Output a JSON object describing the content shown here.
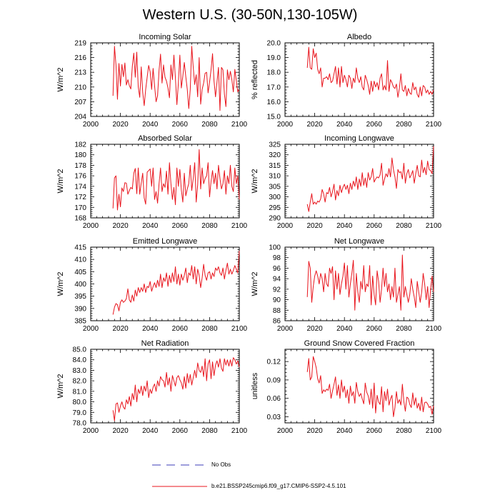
{
  "figure_title": "Western U.S. (30-50N,130-105W)",
  "legend": {
    "obs_label": "No Obs",
    "model_label": "b.e21.BSSP245cmip6.f09_g17.CMIP6-SSP2-4.5.101",
    "obs_color": "#3b3bb8",
    "model_color": "#e8141c"
  },
  "chart_data": [
    {
      "type": "line",
      "title": "Incoming Solar",
      "xlabel": "",
      "ylabel": "W/m^2",
      "xlim": [
        2000,
        2100
      ],
      "ylim": [
        204,
        219
      ],
      "xticks": [
        "2000",
        "2020",
        "2040",
        "2060",
        "2080",
        "2100"
      ],
      "yticks": [
        "204",
        "207",
        "210",
        "213",
        "216",
        "219"
      ],
      "x_start": 2015,
      "series": [
        {
          "name": "b.e21.BSSP245cmip6.f09_g17.CMIP6-SSP2-4.5.101",
          "values": [
            208.2,
            218.3,
            214.5,
            207.5,
            214.8,
            210.2,
            214.6,
            212.1,
            214.9,
            210.4,
            211.5,
            210.3,
            209.6,
            214.2,
            216.9,
            212.0,
            217.1,
            210.0,
            207.9,
            214.1,
            208.9,
            206.2,
            209.5,
            212.0,
            214.4,
            213.1,
            209.5,
            213.8,
            210.2,
            207.0,
            208.2,
            213.4,
            216.7,
            210.8,
            214.5,
            212.0,
            211.2,
            209.8,
            207.8,
            214.5,
            211.5,
            216.5,
            211.9,
            206.4,
            210.8,
            216.5,
            209.8,
            212.2,
            215.0,
            212.1,
            209.5,
            205.6,
            209.5,
            218.3,
            214.0,
            210.5,
            212.5,
            208.0,
            216.0,
            206.5,
            209.5,
            210.8,
            212.8,
            213.0,
            208.8,
            211.0,
            213.5,
            216.8,
            211.2,
            208.0,
            211.0,
            214.0,
            205.2,
            214.0,
            213.5,
            208.5,
            206.0,
            213.5,
            211.5,
            213.2,
            211.5,
            209.0,
            213.6,
            211.3,
            209.0,
            209.5
          ]
        }
      ]
    },
    {
      "type": "line",
      "title": "Albedo",
      "xlabel": "",
      "ylabel": "% reflected",
      "xlim": [
        2000,
        2100
      ],
      "ylim": [
        15.0,
        20.0
      ],
      "xticks": [
        "2000",
        "2020",
        "2040",
        "2060",
        "2080",
        "2100"
      ],
      "yticks": [
        "15.0",
        "16.0",
        "17.0",
        "18.0",
        "19.0",
        "20.0"
      ],
      "x_start": 2015,
      "series": [
        {
          "name": "b.e21.BSSP245cmip6.f09_g17.CMIP6-SSP2-4.5.101",
          "values": [
            18.3,
            19.7,
            18.3,
            18.2,
            19.6,
            19.0,
            19.3,
            18.2,
            17.9,
            18.3,
            17.0,
            17.6,
            17.6,
            17.7,
            17.5,
            17.9,
            17.3,
            17.4,
            17.9,
            18.4,
            17.2,
            18.3,
            17.0,
            18.4,
            17.3,
            17.8,
            17.5,
            17.0,
            17.8,
            17.6,
            16.9,
            17.6,
            17.3,
            18.3,
            17.6,
            17.3,
            17.7,
            17.0,
            16.8,
            17.8,
            17.5,
            17.1,
            16.5,
            17.4,
            16.7,
            17.4,
            17.0,
            17.3,
            16.8,
            17.6,
            17.9,
            16.8,
            17.1,
            16.8,
            18.8,
            16.7,
            17.5,
            17.3,
            17.0,
            16.9,
            17.2,
            16.3,
            16.9,
            17.9,
            16.8,
            16.7,
            17.1,
            16.4,
            16.9,
            16.6,
            16.5,
            17.3,
            16.8,
            17.0,
            16.5,
            16.3,
            17.0,
            16.4,
            17.1,
            17.0,
            16.6,
            16.8,
            16.5,
            16.7,
            16.5,
            16.8
          ]
        }
      ]
    },
    {
      "type": "line",
      "title": "Absorbed Solar",
      "xlabel": "",
      "ylabel": "W/m^2",
      "xlim": [
        2000,
        2100
      ],
      "ylim": [
        168,
        182
      ],
      "xticks": [
        "2000",
        "2020",
        "2040",
        "2060",
        "2080",
        "2100"
      ],
      "yticks": [
        "168",
        "170",
        "172",
        "174",
        "176",
        "178",
        "180",
        "182"
      ],
      "x_start": 2015,
      "series": [
        {
          "name": "b.e21.BSSP245cmip6.f09_g17.CMIP6-SSP2-4.5.101",
          "values": [
            169.8,
            175.6,
            176.0,
            169.5,
            172.5,
            170.1,
            173.7,
            173.0,
            174.7,
            174.6,
            172.5,
            173.2,
            173.8,
            173.5,
            176.5,
            177.4,
            172.6,
            177.5,
            172.5,
            174.6,
            176.5,
            171.8,
            170.6,
            176.7,
            177.0,
            177.3,
            174.0,
            177.5,
            171.5,
            173.0,
            170.8,
            174.5,
            177.5,
            173.0,
            174.5,
            173.8,
            176.9,
            172.5,
            178.5,
            174.5,
            171.5,
            173.8,
            170.5,
            177.5,
            174.0,
            177.2,
            173.3,
            171.0,
            176.5,
            172.2,
            173.5,
            174.5,
            178.0,
            173.2,
            175.5,
            178.5,
            171.0,
            174.3,
            181.0,
            173.5,
            177.5,
            174.5,
            175.5,
            176.0,
            178.5,
            172.0,
            175.0,
            177.0,
            174.5,
            176.5,
            173.5,
            178.0,
            175.5,
            173.5,
            174.5,
            177.0,
            172.5,
            176.0,
            174.5,
            178.0,
            174.0,
            173.0,
            177.5,
            174.5,
            176.0,
            171.5
          ]
        }
      ]
    },
    {
      "type": "line",
      "title": "Incoming Longwave",
      "xlabel": "",
      "ylabel": "W/m^2",
      "xlim": [
        2000,
        2100
      ],
      "ylim": [
        290,
        325
      ],
      "xticks": [
        "2000",
        "2020",
        "2040",
        "2060",
        "2080",
        "2100"
      ],
      "yticks": [
        "290",
        "295",
        "300",
        "305",
        "310",
        "315",
        "320",
        "325"
      ],
      "x_start": 2015,
      "series": [
        {
          "name": "b.e21.BSSP245cmip6.f09_g17.CMIP6-SSP2-4.5.101",
          "values": [
            296.5,
            293.0,
            297.5,
            301.5,
            296.5,
            297.5,
            296.5,
            298.0,
            297.5,
            299.0,
            303.5,
            301.5,
            297.5,
            302.0,
            301.5,
            304.5,
            300.0,
            302.5,
            306.0,
            298.5,
            303.0,
            300.5,
            305.5,
            302.0,
            304.5,
            306.0,
            303.5,
            305.5,
            301.5,
            306.5,
            303.5,
            307.5,
            305.0,
            309.5,
            303.5,
            308.5,
            305.0,
            311.5,
            305.5,
            309.0,
            304.5,
            311.5,
            308.0,
            309.5,
            313.5,
            307.0,
            308.5,
            309.5,
            309.0,
            310.5,
            316.0,
            305.5,
            308.5,
            311.0,
            309.5,
            313.5,
            309.5,
            318.5,
            313.0,
            309.5,
            304.0,
            313.0,
            311.5,
            312.0,
            308.5,
            316.0,
            306.5,
            311.0,
            313.0,
            309.0,
            310.5,
            312.5,
            306.5,
            311.0,
            315.0,
            310.0,
            309.5,
            317.5,
            311.5,
            314.0,
            310.5,
            317.0,
            313.0,
            312.5,
            311.0,
            324.0
          ]
        }
      ]
    },
    {
      "type": "line",
      "title": "Emitted Longwave",
      "xlabel": "",
      "ylabel": "W/m^2",
      "xlim": [
        2000,
        2100
      ],
      "ylim": [
        385,
        415
      ],
      "xticks": [
        "2000",
        "2020",
        "2040",
        "2060",
        "2080",
        "2100"
      ],
      "yticks": [
        "385",
        "390",
        "395",
        "400",
        "405",
        "410",
        "415"
      ],
      "x_start": 2015,
      "series": [
        {
          "name": "b.e21.BSSP245cmip6.f09_g17.CMIP6-SSP2-4.5.101",
          "values": [
            387.5,
            390.5,
            392.0,
            391.5,
            389.0,
            392.5,
            393.5,
            392.5,
            393.0,
            394.0,
            398.0,
            393.5,
            392.5,
            395.5,
            393.0,
            397.5,
            395.0,
            398.5,
            396.5,
            398.5,
            397.0,
            400.0,
            396.5,
            399.0,
            398.5,
            401.0,
            397.0,
            399.0,
            400.5,
            398.5,
            401.5,
            399.0,
            404.0,
            398.5,
            402.5,
            401.0,
            404.5,
            399.0,
            403.5,
            400.5,
            404.5,
            401.0,
            407.0,
            400.0,
            404.0,
            399.5,
            404.0,
            401.5,
            403.5,
            406.5,
            400.5,
            404.5,
            403.5,
            407.5,
            402.0,
            407.0,
            400.0,
            406.0,
            403.5,
            398.5,
            402.5,
            408.0,
            403.5,
            401.5,
            404.5,
            405.0,
            402.0,
            404.5,
            403.0,
            406.5,
            405.5,
            407.0,
            404.5,
            403.5,
            406.5,
            402.0,
            405.5,
            408.5,
            404.0,
            406.0,
            404.0,
            405.5,
            407.5,
            406.0,
            404.5,
            413.5
          ]
        }
      ]
    },
    {
      "type": "line",
      "title": "Net Longwave",
      "xlabel": "",
      "ylabel": "W/m^2",
      "xlim": [
        2000,
        2100
      ],
      "ylim": [
        86,
        100
      ],
      "xticks": [
        "2000",
        "2020",
        "2040",
        "2060",
        "2080",
        "2100"
      ],
      "yticks": [
        "86",
        "88",
        "90",
        "92",
        "94",
        "96",
        "98",
        "100"
      ],
      "x_start": 2015,
      "series": [
        {
          "name": "b.e21.BSSP245cmip6.f09_g17.CMIP6-SSP2-4.5.101",
          "values": [
            90.5,
            97.3,
            96.0,
            89.5,
            92.5,
            94.5,
            95.5,
            94.5,
            93.0,
            95.0,
            94.0,
            91.5,
            95.0,
            93.0,
            92.5,
            96.0,
            95.0,
            96.3,
            90.0,
            95.5,
            92.0,
            95.0,
            91.0,
            93.0,
            94.5,
            97.0,
            92.0,
            96.5,
            90.5,
            93.0,
            95.0,
            97.5,
            88.0,
            95.0,
            91.5,
            89.5,
            93.5,
            92.0,
            96.5,
            91.5,
            93.0,
            92.5,
            96.5,
            89.0,
            94.5,
            91.0,
            89.0,
            95.5,
            93.5,
            89.5,
            92.0,
            96.0,
            92.5,
            95.0,
            91.5,
            93.0,
            90.0,
            92.5,
            90.5,
            96.0,
            89.5,
            91.0,
            92.5,
            88.0,
            98.5,
            90.5,
            92.5,
            91.0,
            89.5,
            91.0,
            94.0,
            92.0,
            90.5,
            88.5,
            93.5,
            91.5,
            89.5,
            91.5,
            95.0,
            93.0,
            90.0,
            92.5,
            88.5,
            92.0,
            94.5,
            91.5
          ]
        }
      ]
    },
    {
      "type": "line",
      "title": "Net Radiation",
      "xlabel": "",
      "ylabel": "W/m^2",
      "xlim": [
        2000,
        2100
      ],
      "ylim": [
        78.0,
        85.0
      ],
      "xticks": [
        "2000",
        "2020",
        "2040",
        "2060",
        "2080",
        "2100"
      ],
      "yticks": [
        "78.0",
        "79.0",
        "80.0",
        "81.0",
        "82.0",
        "83.0",
        "84.0",
        "85.0"
      ],
      "x_start": 2015,
      "series": [
        {
          "name": "b.e21.BSSP245cmip6.f09_g17.CMIP6-SSP2-4.5.101",
          "values": [
            79.2,
            78.2,
            79.8,
            79.9,
            79.0,
            79.6,
            80.0,
            79.5,
            79.3,
            80.2,
            79.8,
            80.5,
            79.6,
            80.8,
            80.2,
            81.6,
            80.0,
            81.2,
            80.8,
            81.5,
            80.6,
            81.5,
            81.0,
            82.0,
            80.4,
            81.2,
            80.8,
            81.4,
            81.7,
            81.0,
            82.0,
            81.5,
            82.4,
            82.1,
            82.0,
            81.4,
            82.8,
            81.6,
            82.3,
            81.0,
            82.5,
            82.0,
            81.5,
            82.3,
            82.5,
            82.1,
            81.8,
            81.2,
            82.4,
            81.3,
            82.7,
            81.8,
            82.6,
            81.6,
            82.3,
            83.0,
            82.3,
            83.7,
            83.0,
            82.8,
            83.4,
            82.4,
            84.1,
            82.0,
            83.6,
            84.0,
            82.2,
            83.8,
            82.5,
            83.5,
            83.9,
            83.3,
            84.1,
            83.2,
            82.9,
            84.1,
            83.5,
            84.0,
            83.4,
            84.0,
            83.4,
            84.2,
            84.0,
            83.6,
            83.9,
            83.3
          ]
        }
      ]
    },
    {
      "type": "line",
      "title": "Ground Snow Covered Fraction",
      "xlabel": "",
      "ylabel": "unitless",
      "xlim": [
        2000,
        2100
      ],
      "ylim": [
        0.02,
        0.14
      ],
      "xticks": [
        "2000",
        "2020",
        "2040",
        "2060",
        "2080",
        "2100"
      ],
      "yticks": [
        "0.03",
        "0.06",
        "0.09",
        "0.12"
      ],
      "x_start": 2015,
      "series": [
        {
          "name": "b.e21.BSSP245cmip6.f09_g17.CMIP6-SSP2-4.5.101",
          "values": [
            0.103,
            0.125,
            0.09,
            0.095,
            0.128,
            0.12,
            0.11,
            0.092,
            0.085,
            0.097,
            0.068,
            0.074,
            0.071,
            0.075,
            0.073,
            0.083,
            0.06,
            0.072,
            0.083,
            0.095,
            0.065,
            0.082,
            0.06,
            0.09,
            0.07,
            0.08,
            0.061,
            0.074,
            0.052,
            0.08,
            0.064,
            0.071,
            0.052,
            0.086,
            0.071,
            0.063,
            0.068,
            0.059,
            0.051,
            0.085,
            0.07,
            0.064,
            0.05,
            0.075,
            0.044,
            0.085,
            0.036,
            0.065,
            0.054,
            0.05,
            0.079,
            0.038,
            0.071,
            0.056,
            0.075,
            0.049,
            0.059,
            0.065,
            0.03,
            0.045,
            0.071,
            0.052,
            0.058,
            0.049,
            0.083,
            0.055,
            0.039,
            0.062,
            0.06,
            0.05,
            0.045,
            0.069,
            0.049,
            0.061,
            0.044,
            0.052,
            0.04,
            0.062,
            0.038,
            0.053,
            0.054,
            0.051,
            0.045,
            0.047,
            0.034,
            0.048
          ]
        }
      ]
    }
  ]
}
